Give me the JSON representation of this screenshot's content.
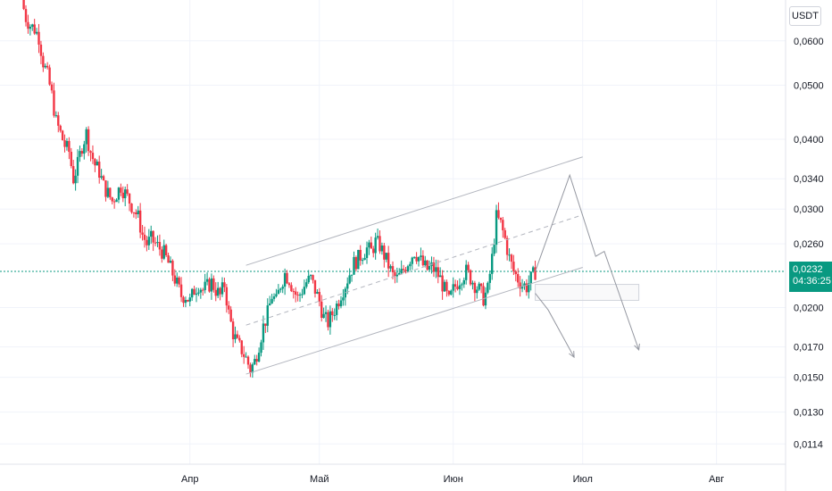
{
  "axis": {
    "unit_label": "USDT",
    "y_ticks": [
      {
        "value": 0.06,
        "label": "0,0600"
      },
      {
        "value": 0.05,
        "label": "0,0500"
      },
      {
        "value": 0.04,
        "label": "0,0400"
      },
      {
        "value": 0.034,
        "label": "0,0340"
      },
      {
        "value": 0.03,
        "label": "0,0300"
      },
      {
        "value": 0.026,
        "label": "0,0260"
      },
      {
        "value": 0.02,
        "label": "0,0200"
      },
      {
        "value": 0.017,
        "label": "0,0170"
      },
      {
        "value": 0.015,
        "label": "0,0150"
      },
      {
        "value": 0.013,
        "label": "0,0130"
      },
      {
        "value": 0.0114,
        "label": "0,0114"
      }
    ],
    "x_ticks": [
      {
        "date": "2024-04-01",
        "label": "Апр"
      },
      {
        "date": "2024-05-01",
        "label": "Май"
      },
      {
        "date": "2024-06-01",
        "label": "Июн"
      },
      {
        "date": "2024-07-01",
        "label": "Июл"
      },
      {
        "date": "2024-08-01",
        "label": "Авг"
      }
    ]
  },
  "last_price": {
    "price_label": "0,0232",
    "countdown_label": "04:36:25"
  },
  "colors": {
    "up": "#089981",
    "down": "#f23645",
    "grid": "#f0f3fa",
    "drawing": "#9598a1",
    "price_line": "#089981"
  },
  "chart_data": {
    "type": "candlestick",
    "scale": "log",
    "ylim": [
      0.0108,
      0.071
    ],
    "xlim": [
      "2024-02-17",
      "2024-08-17"
    ],
    "grid": true,
    "close_path": [
      [
        "2024-02-22",
        0.071
      ],
      [
        "2024-02-23",
        0.066
      ],
      [
        "2024-02-24",
        0.064
      ],
      [
        "2024-02-25",
        0.063
      ],
      [
        "2024-02-26",
        0.061
      ],
      [
        "2024-02-27",
        0.055
      ],
      [
        "2024-02-28",
        0.052
      ],
      [
        "2024-02-29",
        0.048
      ],
      [
        "2024-03-01",
        0.043
      ],
      [
        "2024-03-02",
        0.041
      ],
      [
        "2024-03-03",
        0.039
      ],
      [
        "2024-03-04",
        0.038
      ],
      [
        "2024-03-05",
        0.034
      ],
      [
        "2024-03-06",
        0.036
      ],
      [
        "2024-03-07",
        0.039
      ],
      [
        "2024-03-08",
        0.041
      ],
      [
        "2024-03-09",
        0.038
      ],
      [
        "2024-03-10",
        0.036
      ],
      [
        "2024-03-11",
        0.035
      ],
      [
        "2024-03-12",
        0.033
      ],
      [
        "2024-03-13",
        0.032
      ],
      [
        "2024-03-14",
        0.031
      ],
      [
        "2024-03-15",
        0.032
      ],
      [
        "2024-03-16",
        0.033
      ],
      [
        "2024-03-17",
        0.032
      ],
      [
        "2024-03-18",
        0.031
      ],
      [
        "2024-03-19",
        0.03
      ],
      [
        "2024-03-20",
        0.029
      ],
      [
        "2024-03-21",
        0.027
      ],
      [
        "2024-03-22",
        0.026
      ],
      [
        "2024-03-23",
        0.0265
      ],
      [
        "2024-03-24",
        0.026
      ],
      [
        "2024-03-25",
        0.0255
      ],
      [
        "2024-03-26",
        0.025
      ],
      [
        "2024-03-27",
        0.024
      ],
      [
        "2024-03-28",
        0.023
      ],
      [
        "2024-03-29",
        0.022
      ],
      [
        "2024-03-30",
        0.021
      ],
      [
        "2024-03-31",
        0.021
      ],
      [
        "2024-04-01",
        0.0205
      ],
      [
        "2024-04-02",
        0.0215
      ],
      [
        "2024-04-03",
        0.022
      ],
      [
        "2024-04-04",
        0.0215
      ],
      [
        "2024-04-05",
        0.0218
      ],
      [
        "2024-04-06",
        0.0222
      ],
      [
        "2024-04-07",
        0.0215
      ],
      [
        "2024-04-08",
        0.021
      ],
      [
        "2024-04-09",
        0.022
      ],
      [
        "2024-04-10",
        0.0195
      ],
      [
        "2024-04-11",
        0.018
      ],
      [
        "2024-04-12",
        0.0172
      ],
      [
        "2024-04-13",
        0.0168
      ],
      [
        "2024-04-14",
        0.0162
      ],
      [
        "2024-04-15",
        0.0155
      ],
      [
        "2024-04-16",
        0.016
      ],
      [
        "2024-04-17",
        0.0172
      ],
      [
        "2024-04-18",
        0.0185
      ],
      [
        "2024-04-19",
        0.0195
      ],
      [
        "2024-04-20",
        0.021
      ],
      [
        "2024-04-21",
        0.0205
      ],
      [
        "2024-04-22",
        0.022
      ],
      [
        "2024-04-23",
        0.023
      ],
      [
        "2024-04-24",
        0.0225
      ],
      [
        "2024-04-25",
        0.0215
      ],
      [
        "2024-04-26",
        0.0208
      ],
      [
        "2024-04-27",
        0.0215
      ],
      [
        "2024-04-28",
        0.0222
      ],
      [
        "2024-04-29",
        0.0225
      ],
      [
        "2024-04-30",
        0.0215
      ],
      [
        "2024-05-01",
        0.0205
      ],
      [
        "2024-05-02",
        0.0192
      ],
      [
        "2024-05-03",
        0.0188
      ],
      [
        "2024-05-04",
        0.0195
      ],
      [
        "2024-05-05",
        0.0202
      ],
      [
        "2024-05-06",
        0.0212
      ],
      [
        "2024-05-07",
        0.022
      ],
      [
        "2024-05-08",
        0.023
      ],
      [
        "2024-05-09",
        0.024
      ],
      [
        "2024-05-10",
        0.0245
      ],
      [
        "2024-05-11",
        0.025
      ],
      [
        "2024-05-12",
        0.0255
      ],
      [
        "2024-05-13",
        0.0252
      ],
      [
        "2024-05-14",
        0.0262
      ],
      [
        "2024-05-15",
        0.0258
      ],
      [
        "2024-05-16",
        0.0248
      ],
      [
        "2024-05-17",
        0.0238
      ],
      [
        "2024-05-18",
        0.0228
      ],
      [
        "2024-05-19",
        0.0225
      ],
      [
        "2024-05-20",
        0.023
      ],
      [
        "2024-05-21",
        0.0238
      ],
      [
        "2024-05-22",
        0.0245
      ],
      [
        "2024-05-23",
        0.0252
      ],
      [
        "2024-05-24",
        0.0246
      ],
      [
        "2024-05-25",
        0.0238
      ],
      [
        "2024-05-26",
        0.0234
      ],
      [
        "2024-05-27",
        0.0236
      ],
      [
        "2024-05-28",
        0.0232
      ],
      [
        "2024-05-29",
        0.0225
      ],
      [
        "2024-05-30",
        0.0215
      ],
      [
        "2024-05-31",
        0.0205
      ],
      [
        "2024-06-01",
        0.0215
      ],
      [
        "2024-06-02",
        0.0222
      ],
      [
        "2024-06-03",
        0.0228
      ],
      [
        "2024-06-04",
        0.0232
      ],
      [
        "2024-06-05",
        0.0226
      ],
      [
        "2024-06-06",
        0.022
      ],
      [
        "2024-06-07",
        0.0215
      ],
      [
        "2024-06-08",
        0.0208
      ],
      [
        "2024-06-09",
        0.0215
      ],
      [
        "2024-06-10",
        0.0245
      ],
      [
        "2024-06-11",
        0.029
      ],
      [
        "2024-06-12",
        0.0282
      ],
      [
        "2024-06-13",
        0.0265
      ],
      [
        "2024-06-14",
        0.0245
      ],
      [
        "2024-06-15",
        0.0232
      ],
      [
        "2024-06-16",
        0.0225
      ],
      [
        "2024-06-17",
        0.022
      ],
      [
        "2024-06-18",
        0.0218
      ],
      [
        "2024-06-19",
        0.0225
      ],
      [
        "2024-06-20",
        0.0232
      ]
    ],
    "drawings": {
      "channel_upper": [
        [
          "2024-04-14",
          0.0238
        ],
        [
          "2024-07-01",
          0.0372
        ]
      ],
      "channel_mid": [
        [
          "2024-04-14",
          0.0186
        ],
        [
          "2024-07-01",
          0.0293
        ]
      ],
      "channel_lower": [
        [
          "2024-04-14",
          0.0152
        ],
        [
          "2024-07-01",
          0.0236
        ]
      ],
      "zone": {
        "from": "2024-06-20",
        "to": "2024-07-14",
        "top": 0.022,
        "bottom": 0.0206
      },
      "scenario_1": [
        [
          "2024-06-20",
          0.0232
        ],
        [
          "2024-06-28",
          0.0345
        ],
        [
          "2024-07-04",
          0.0247
        ],
        [
          "2024-07-06",
          0.0252
        ],
        [
          "2024-07-14",
          0.0168
        ]
      ],
      "scenario_2": [
        [
          "2024-06-20",
          0.0212
        ],
        [
          "2024-06-23",
          0.0198
        ],
        [
          "2024-06-29",
          0.0163
        ]
      ]
    }
  }
}
